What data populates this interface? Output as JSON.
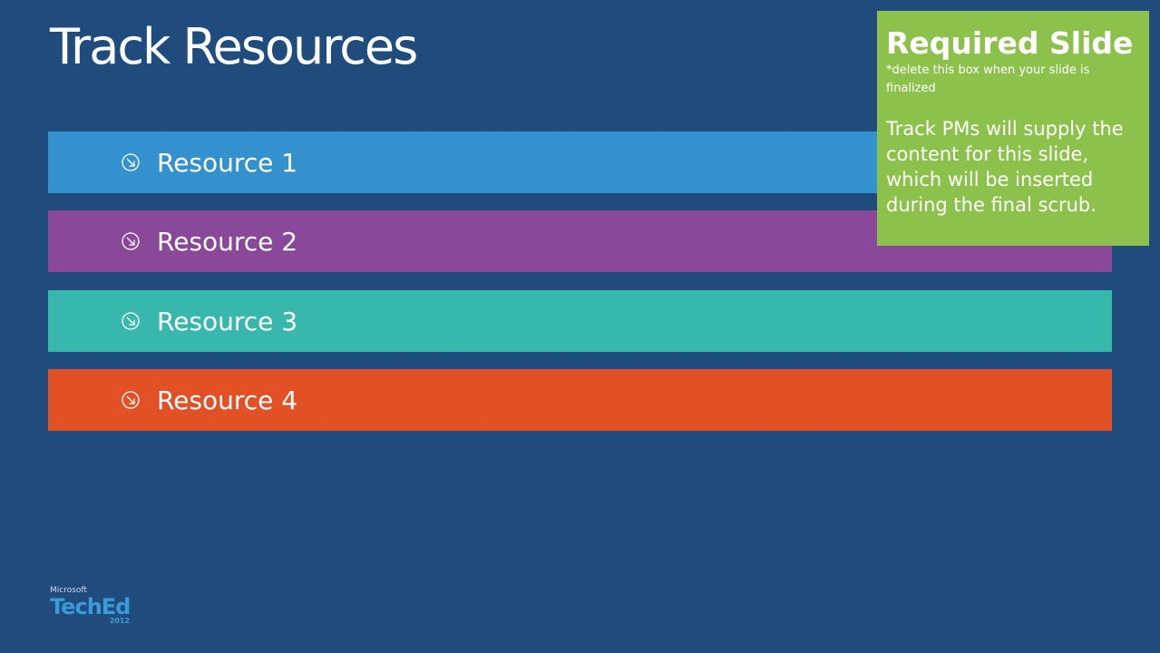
{
  "title": "Track Resources",
  "resources": [
    {
      "label": "Resource 1",
      "color": "#3391cd"
    },
    {
      "label": "Resource 2",
      "color": "#8a4898"
    },
    {
      "label": "Resource 3",
      "color": "#38b8ad"
    },
    {
      "label": "Resource 4",
      "color": "#e25125"
    }
  ],
  "note": {
    "heading": "Required Slide",
    "subheading": "*delete this box when your slide is finalized",
    "body": "Track PMs will supply the content for this slide, which will be inserted during the final scrub."
  },
  "logo": {
    "company": "Microsoft",
    "product": "TechEd",
    "year": "2012"
  }
}
